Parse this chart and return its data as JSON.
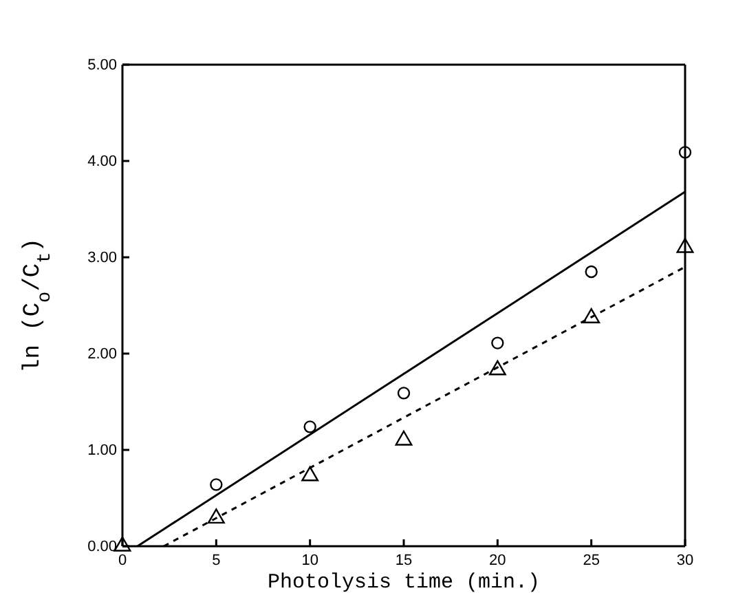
{
  "chart_data": {
    "type": "scatter",
    "xlabel": "Photolysis time (min.)",
    "ylabel": "ln (C$_{o}$/C$_{t}$)",
    "xlim": [
      0,
      30
    ],
    "xticks": [
      0,
      5,
      10,
      15,
      20,
      25,
      30
    ],
    "ylim": [
      0,
      5
    ],
    "yticks": [
      {
        "value": 0,
        "label": "0.00"
      },
      {
        "value": 1,
        "label": "1.00"
      },
      {
        "value": 2,
        "label": "2.00"
      },
      {
        "value": 3,
        "label": "3.00"
      },
      {
        "value": 4,
        "label": "4.00"
      },
      {
        "value": 5,
        "label": "5.00"
      }
    ],
    "grid": false,
    "series": [
      {
        "marker": "circle",
        "color": "#000000",
        "x": [
          5,
          10,
          15,
          20,
          25,
          30
        ],
        "values": [
          0.64,
          1.24,
          1.59,
          2.11,
          2.85,
          4.09
        ]
      },
      {
        "marker": "triangle",
        "color": "#000000",
        "x": [
          0,
          5,
          10,
          15,
          20,
          25,
          30
        ],
        "values": [
          0,
          0.29,
          0.73,
          1.1,
          1.83,
          2.37,
          3.1
        ]
      },
      {
        "type": "line",
        "line_style": "solid",
        "marker": "none",
        "color": "#000000",
        "x": [
          0.8,
          30
        ],
        "values": [
          0,
          3.68
        ]
      },
      {
        "type": "line",
        "line_style": "dashed",
        "marker": "none",
        "color": "#000000",
        "x": [
          2.2,
          30
        ],
        "values": [
          0,
          2.9
        ]
      }
    ]
  }
}
